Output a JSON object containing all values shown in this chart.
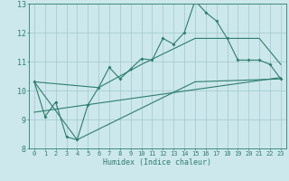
{
  "xlabel": "Humidex (Indice chaleur)",
  "background_color": "#cce8ec",
  "grid_color": "#a0c8cc",
  "line_color": "#2e7d6e",
  "xlim": [
    -0.5,
    23.5
  ],
  "ylim": [
    8,
    13
  ],
  "yticks": [
    8,
    9,
    10,
    11,
    12,
    13
  ],
  "xticks": [
    0,
    1,
    2,
    3,
    4,
    5,
    6,
    7,
    8,
    9,
    10,
    11,
    12,
    13,
    14,
    15,
    16,
    17,
    18,
    19,
    20,
    21,
    22,
    23
  ],
  "main_line_x": [
    0,
    1,
    2,
    3,
    4,
    5,
    6,
    7,
    8,
    9,
    10,
    11,
    12,
    13,
    14,
    15,
    16,
    17,
    18,
    19,
    20,
    21,
    22,
    23
  ],
  "main_line_y": [
    10.3,
    9.1,
    9.6,
    8.4,
    8.3,
    9.5,
    10.1,
    10.8,
    10.4,
    10.75,
    11.1,
    11.05,
    11.8,
    11.6,
    12.0,
    13.1,
    12.7,
    12.4,
    11.8,
    11.05,
    11.05,
    11.05,
    10.9,
    10.4
  ],
  "upper_line_x": [
    0,
    6,
    10,
    15,
    21,
    23
  ],
  "upper_line_y": [
    10.3,
    10.1,
    10.9,
    11.8,
    11.8,
    10.9
  ],
  "lower_line_x": [
    0,
    4,
    15,
    23
  ],
  "lower_line_y": [
    10.3,
    8.3,
    10.3,
    10.4
  ],
  "reg_line_x": [
    0,
    23
  ],
  "reg_line_y": [
    9.25,
    10.45
  ]
}
